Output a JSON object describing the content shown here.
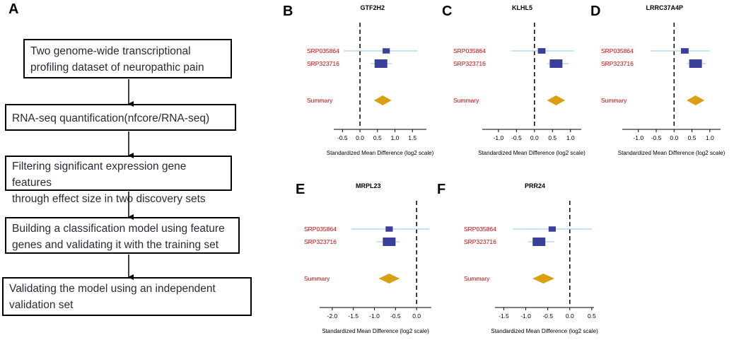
{
  "panel_a": {
    "letter": "A",
    "steps": [
      {
        "lines": [
          "Two genome-wide transcriptional",
          "profiling dataset of neuropathic pain"
        ]
      },
      {
        "lines": [
          "RNA-seq quantification(nfcore/RNA-seq)"
        ]
      },
      {
        "lines": [
          "Filtering significant expression gene features",
          "through effect size in two discovery sets"
        ]
      },
      {
        "lines": [
          "Building a classification model using feature",
          "genes and validating it with the training set"
        ]
      },
      {
        "lines": [
          "Validating the model using an independent",
          "validation set"
        ]
      }
    ]
  },
  "colors": {
    "study_label": "#cc0000",
    "box": "#3a3f9a",
    "ci_line": "#a9cfe6",
    "summary": "#d9a012",
    "axis": "#000000"
  },
  "chart_data": [
    {
      "type": "forest",
      "letter": "B",
      "title": "GTF2H2",
      "xlabel": "Standardized Mean Difference (log2 scale)",
      "xlim": [
        -0.75,
        1.9
      ],
      "ticks": [
        -0.5,
        0,
        0.5,
        1,
        1.5
      ],
      "tick_labels": [
        "-0.5",
        "0.0",
        "0.5",
        "1.0",
        "1.5"
      ],
      "studies": [
        {
          "name": "SRP035864",
          "smd": 0.75,
          "ci": [
            -0.45,
            1.65
          ],
          "weight": 0.35
        },
        {
          "name": "SRP323716",
          "smd": 0.6,
          "ci": [
            0.3,
            0.9
          ],
          "weight": 1.0
        }
      ],
      "summary": {
        "label": "Summary",
        "smd": 0.65,
        "ci": [
          0.4,
          0.9
        ]
      }
    },
    {
      "type": "forest",
      "letter": "C",
      "title": "KLHL5",
      "xlabel": "Standardized Mean Difference (log2 scale)",
      "xlim": [
        -1.45,
        1.3
      ],
      "ticks": [
        -1,
        -0.5,
        0,
        0.5,
        1
      ],
      "tick_labels": [
        "-1.0",
        "-0.5",
        "0.0",
        "0.5",
        "1.0"
      ],
      "studies": [
        {
          "name": "SRP035864",
          "smd": 0.2,
          "ci": [
            -0.65,
            1.1
          ],
          "weight": 0.4
        },
        {
          "name": "SRP323716",
          "smd": 0.6,
          "ci": [
            0.35,
            0.95
          ],
          "weight": 1.0
        }
      ],
      "summary": {
        "label": "Summary",
        "smd": 0.6,
        "ci": [
          0.35,
          0.85
        ]
      }
    },
    {
      "type": "forest",
      "letter": "D",
      "title": "LRRC37A4P",
      "xlabel": "Standardized Mean Difference (log2 scale)",
      "xlim": [
        -1.45,
        1.3
      ],
      "ticks": [
        -1,
        -0.5,
        0,
        0.5,
        1
      ],
      "tick_labels": [
        "-1.0",
        "-0.5",
        "0.0",
        "0.5",
        "1.0"
      ],
      "studies": [
        {
          "name": "SRP035864",
          "smd": 0.3,
          "ci": [
            -0.65,
            1.0
          ],
          "weight": 0.4
        },
        {
          "name": "SRP323716",
          "smd": 0.6,
          "ci": [
            0.35,
            0.9
          ],
          "weight": 1.0
        }
      ],
      "summary": {
        "label": "Summary",
        "smd": 0.6,
        "ci": [
          0.35,
          0.85
        ]
      }
    },
    {
      "type": "forest",
      "letter": "E",
      "title": "MRPL23",
      "xlabel": "Standardized Mean Difference (log2 scale)",
      "xlim": [
        -2.3,
        0.35
      ],
      "ticks": [
        -2,
        -1.5,
        -1,
        -0.5,
        0
      ],
      "tick_labels": [
        "-2.0",
        "-1.5",
        "-1.0",
        "-0.5",
        "0.0"
      ],
      "studies": [
        {
          "name": "SRP035864",
          "smd": -0.65,
          "ci": [
            -1.55,
            0.3
          ],
          "weight": 0.35
        },
        {
          "name": "SRP323716",
          "smd": -0.65,
          "ci": [
            -0.95,
            -0.4
          ],
          "weight": 1.0
        }
      ],
      "summary": {
        "label": "Summary",
        "smd": -0.65,
        "ci": [
          -0.9,
          -0.4
        ]
      }
    },
    {
      "type": "forest",
      "letter": "F",
      "title": "PRR24",
      "xlabel": "Standardized Mean Difference (log2 scale)",
      "xlim": [
        -1.7,
        0.55
      ],
      "ticks": [
        -1.5,
        -1,
        -0.5,
        0,
        0.5
      ],
      "tick_labels": [
        "-1.5",
        "-1.0",
        "-0.5",
        "0.0",
        "0.5"
      ],
      "studies": [
        {
          "name": "SRP035864",
          "smd": -0.4,
          "ci": [
            -1.3,
            0.5
          ],
          "weight": 0.35
        },
        {
          "name": "SRP323716",
          "smd": -0.7,
          "ci": [
            -0.95,
            -0.35
          ],
          "weight": 1.0
        }
      ],
      "summary": {
        "label": "Summary",
        "smd": -0.6,
        "ci": [
          -0.85,
          -0.35
        ]
      }
    }
  ]
}
